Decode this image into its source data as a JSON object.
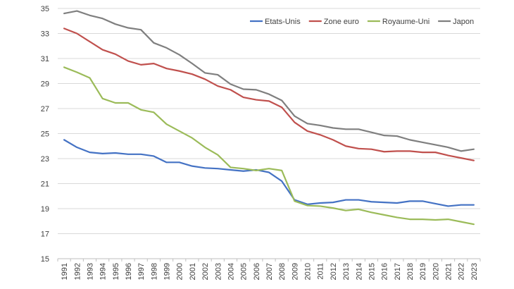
{
  "chart_data": {
    "type": "line",
    "title": "",
    "xlabel": "",
    "ylabel": "",
    "ylim": [
      15,
      35
    ],
    "yticks": [
      15,
      17,
      19,
      21,
      23,
      25,
      27,
      29,
      31,
      33,
      35
    ],
    "grid": "horizontal",
    "legend_position": "top-right",
    "x": [
      "1991",
      "1992",
      "1993",
      "1994",
      "1995",
      "1996",
      "1997",
      "1998",
      "1999",
      "2000",
      "2001",
      "2002",
      "2003",
      "2004",
      "2005",
      "2006",
      "2007",
      "2008",
      "2009",
      "2010",
      "2011",
      "2012",
      "2013",
      "2014",
      "2015",
      "2016",
      "2017",
      "2018",
      "2019",
      "2020",
      "2021",
      "2022",
      "2023"
    ],
    "series": [
      {
        "name": "Etats-Unis",
        "color": "#4472c4",
        "values": [
          24.5,
          23.9,
          23.5,
          23.4,
          23.45,
          23.35,
          23.35,
          23.2,
          22.7,
          22.7,
          22.4,
          22.25,
          22.2,
          22.1,
          22.0,
          22.1,
          21.9,
          21.2,
          19.7,
          19.35,
          19.45,
          19.5,
          19.7,
          19.7,
          19.55,
          19.5,
          19.45,
          19.6,
          19.6,
          19.4,
          19.2,
          19.3,
          19.3
        ]
      },
      {
        "name": "Zone euro",
        "color": "#c0504d",
        "values": [
          33.4,
          33.0,
          32.35,
          31.7,
          31.35,
          30.8,
          30.5,
          30.6,
          30.2,
          30.0,
          29.75,
          29.35,
          28.8,
          28.5,
          27.9,
          27.7,
          27.6,
          27.1,
          25.9,
          25.2,
          24.9,
          24.5,
          24.0,
          23.8,
          23.75,
          23.55,
          23.6,
          23.6,
          23.5,
          23.5,
          23.25,
          23.05,
          22.85
        ]
      },
      {
        "name": "Royaume-Uni",
        "color": "#9bbb59",
        "values": [
          30.3,
          29.9,
          29.45,
          27.8,
          27.45,
          27.45,
          26.9,
          26.7,
          25.75,
          25.2,
          24.65,
          23.9,
          23.3,
          22.3,
          22.2,
          22.05,
          22.2,
          22.05,
          19.6,
          19.25,
          19.2,
          19.05,
          18.85,
          18.95,
          18.7,
          18.5,
          18.3,
          18.15,
          18.15,
          18.1,
          18.15,
          17.95,
          17.75
        ]
      },
      {
        "name": "Japon",
        "color": "#7f7f7f",
        "values": [
          34.6,
          34.8,
          34.45,
          34.2,
          33.75,
          33.45,
          33.3,
          32.25,
          31.85,
          31.3,
          30.6,
          29.85,
          29.7,
          28.95,
          28.55,
          28.5,
          28.15,
          27.65,
          26.4,
          25.8,
          25.65,
          25.45,
          25.35,
          25.35,
          25.1,
          24.85,
          24.8,
          24.5,
          24.3,
          24.1,
          23.9,
          23.6,
          23.75
        ]
      }
    ]
  }
}
